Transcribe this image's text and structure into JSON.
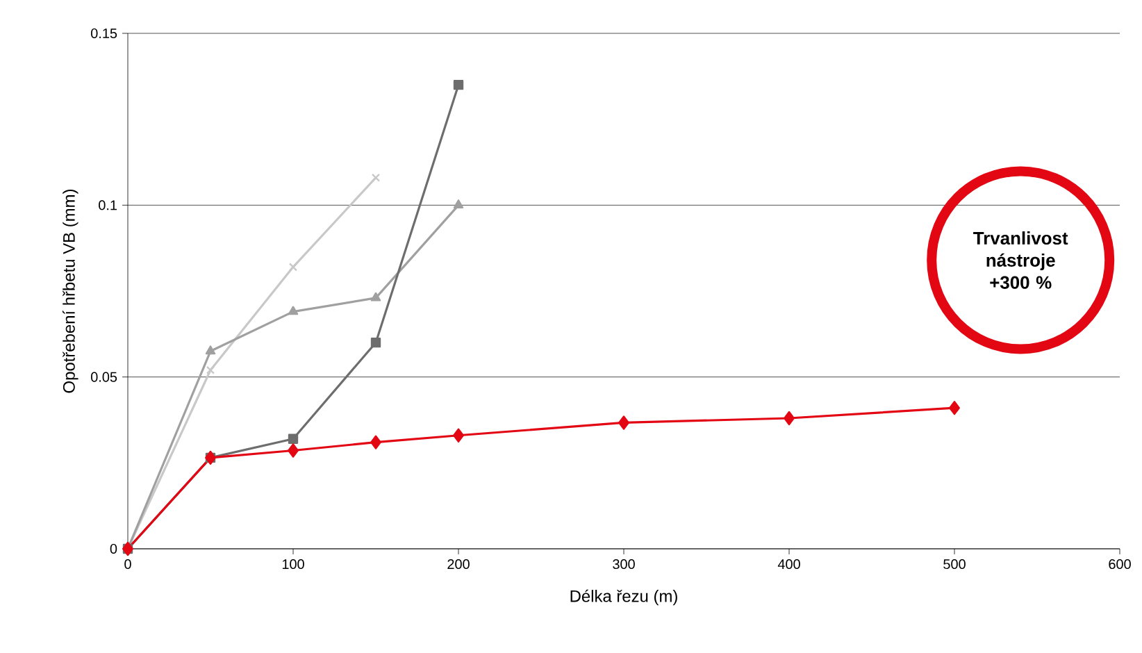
{
  "chart_data": {
    "type": "line",
    "xlabel": "Délka řezu (m)",
    "ylabel": "Opotřebení hřbetu VB (mm)",
    "xlim": [
      0,
      600
    ],
    "xticks": [
      0,
      100,
      200,
      300,
      400,
      500,
      600
    ],
    "ylim": [
      0,
      0.15
    ],
    "yticks": [
      0,
      0.05,
      0.1,
      0.15
    ],
    "grid": "y",
    "annotations": [
      "Trvanlivost nástroje +300 %"
    ],
    "series": [
      {
        "color": "#c8c8c8",
        "marker": "cross",
        "x": [
          0,
          50,
          100,
          150
        ],
        "values": [
          0,
          0.052,
          0.082,
          0.108
        ]
      },
      {
        "color": "#a0a0a0",
        "marker": "triangle",
        "x": [
          0,
          50,
          100,
          150,
          200
        ],
        "values": [
          0,
          0.0575,
          0.069,
          0.073,
          0.1
        ]
      },
      {
        "color": "#6d6d6d",
        "marker": "square",
        "x": [
          0,
          50,
          100,
          150,
          200
        ],
        "values": [
          0,
          0.0265,
          0.032,
          0.06,
          0.135
        ]
      },
      {
        "color": "#e30613",
        "marker": "diamond",
        "x": [
          0,
          50,
          100,
          150,
          200,
          300,
          400,
          500
        ],
        "values": [
          0,
          0.0265,
          0.0286,
          0.031,
          0.033,
          0.0367,
          0.038,
          0.041
        ]
      }
    ]
  }
}
